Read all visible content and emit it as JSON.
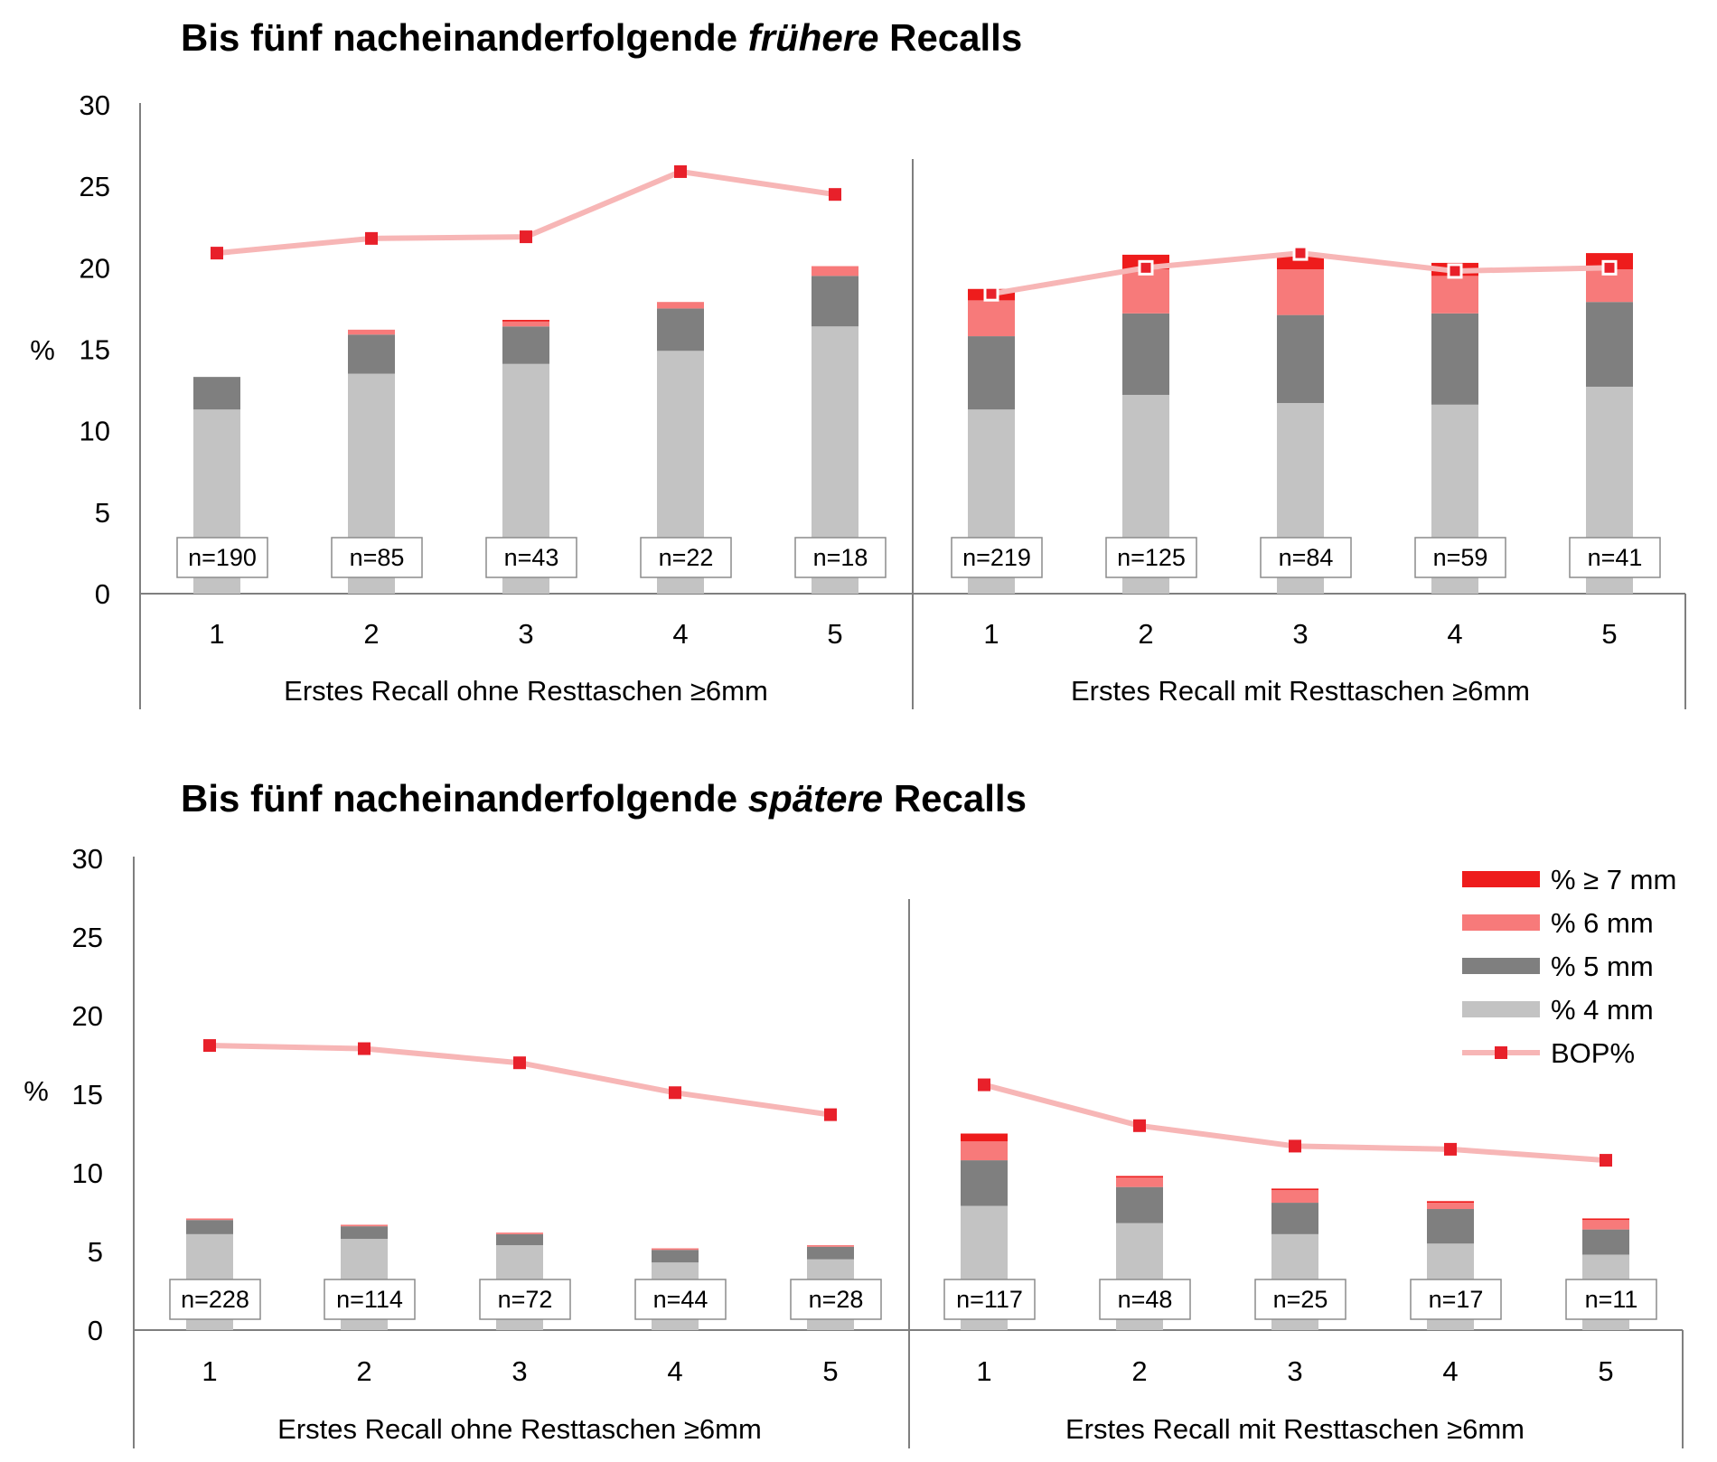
{
  "colors": {
    "pct7": "#ee1c1c",
    "pct6": "#f77a7a",
    "pct5": "#7f7f7f",
    "pct4": "#c3c3c3",
    "bop_line": "#f7b6b6",
    "bop_marker": "#e8202a"
  },
  "legend": {
    "items": [
      {
        "key": "pct7",
        "label": "% ≥ 7 mm"
      },
      {
        "key": "pct6",
        "label": "% 6 mm"
      },
      {
        "key": "pct5",
        "label": "% 5 mm"
      },
      {
        "key": "pct4",
        "label": "% 4 mm"
      },
      {
        "key": "bop",
        "label": "BOP%"
      }
    ]
  },
  "chart_data": [
    {
      "type": "bar",
      "stacked": true,
      "title_prefix": "Bis fünf nacheinanderfolgende ",
      "title_emph": "frühere",
      "title_suffix": " Recalls",
      "ylabel": "%",
      "ylim": [
        0,
        30
      ],
      "yticks": [
        0,
        5,
        10,
        15,
        20,
        25,
        30
      ],
      "legend": "none",
      "groups": [
        {
          "label": "Erstes Recall ohne Resttaschen ≥6mm",
          "categories": [
            "1",
            "2",
            "3",
            "4",
            "5"
          ],
          "n_labels": [
            "n=190",
            "n=85",
            "n=43",
            "n=22",
            "n=18"
          ],
          "series": [
            {
              "name": "% 4 mm",
              "key": "pct4",
              "values": [
                11.3,
                13.5,
                14.1,
                14.9,
                16.4
              ]
            },
            {
              "name": "% 5 mm",
              "key": "pct5",
              "values": [
                2.0,
                2.4,
                2.3,
                2.6,
                3.1
              ]
            },
            {
              "name": "% 6 mm",
              "key": "pct6",
              "values": [
                0.0,
                0.3,
                0.3,
                0.4,
                0.6
              ]
            },
            {
              "name": "% ≥ 7 mm",
              "key": "pct7",
              "values": [
                0.0,
                0.0,
                0.1,
                0.0,
                0.0
              ]
            }
          ],
          "bop": [
            20.9,
            21.8,
            21.9,
            25.9,
            24.5
          ]
        },
        {
          "label": "Erstes Recall mit Resttaschen ≥6mm",
          "categories": [
            "1",
            "2",
            "3",
            "4",
            "5"
          ],
          "n_labels": [
            "n=219",
            "n=125",
            "n=84",
            "n=59",
            "n=41"
          ],
          "series": [
            {
              "name": "% 4 mm",
              "key": "pct4",
              "values": [
                11.3,
                12.2,
                11.7,
                11.6,
                12.7
              ]
            },
            {
              "name": "% 5 mm",
              "key": "pct5",
              "values": [
                4.5,
                5.0,
                5.4,
                5.6,
                5.2
              ]
            },
            {
              "name": "% 6 mm",
              "key": "pct6",
              "values": [
                2.2,
                2.7,
                2.8,
                2.3,
                2.0
              ]
            },
            {
              "name": "% ≥ 7 mm",
              "key": "pct7",
              "values": [
                0.7,
                0.9,
                0.9,
                0.8,
                1.0
              ]
            }
          ],
          "bop": [
            18.4,
            20.0,
            20.9,
            19.8,
            20.0
          ]
        }
      ]
    },
    {
      "type": "bar",
      "stacked": true,
      "title_prefix": "Bis fünf nacheinanderfolgende ",
      "title_emph": "spätere",
      "title_suffix": " Recalls",
      "ylabel": "%",
      "ylim": [
        0,
        30
      ],
      "yticks": [
        0,
        5,
        10,
        15,
        20,
        25,
        30
      ],
      "legend": "right",
      "groups": [
        {
          "label": "Erstes Recall ohne Resttaschen ≥6mm",
          "categories": [
            "1",
            "2",
            "3",
            "4",
            "5"
          ],
          "n_labels": [
            "n=228",
            "n=114",
            "n=72",
            "n=44",
            "n=28"
          ],
          "series": [
            {
              "name": "% 4 mm",
              "key": "pct4",
              "values": [
                6.1,
                5.8,
                5.4,
                4.3,
                4.5
              ]
            },
            {
              "name": "% 5 mm",
              "key": "pct5",
              "values": [
                0.9,
                0.8,
                0.7,
                0.8,
                0.8
              ]
            },
            {
              "name": "% 6 mm",
              "key": "pct6",
              "values": [
                0.1,
                0.1,
                0.1,
                0.1,
                0.1
              ]
            },
            {
              "name": "% ≥ 7 mm",
              "key": "pct7",
              "values": [
                0.0,
                0.0,
                0.0,
                0.0,
                0.0
              ]
            }
          ],
          "bop": [
            18.1,
            17.9,
            17.0,
            15.1,
            13.7
          ]
        },
        {
          "label": "Erstes Recall mit Resttaschen ≥6mm",
          "categories": [
            "1",
            "2",
            "3",
            "4",
            "5"
          ],
          "n_labels": [
            "n=117",
            "n=48",
            "n=25",
            "n=17",
            "n=11"
          ],
          "series": [
            {
              "name": "% 4 mm",
              "key": "pct4",
              "values": [
                7.9,
                6.8,
                6.1,
                5.5,
                4.8
              ]
            },
            {
              "name": "% 5 mm",
              "key": "pct5",
              "values": [
                2.9,
                2.3,
                2.0,
                2.2,
                1.6
              ]
            },
            {
              "name": "% 6 mm",
              "key": "pct6",
              "values": [
                1.2,
                0.6,
                0.8,
                0.4,
                0.6
              ]
            },
            {
              "name": "% ≥ 7 mm",
              "key": "pct7",
              "values": [
                0.5,
                0.1,
                0.1,
                0.1,
                0.1
              ]
            }
          ],
          "bop": [
            15.6,
            13.0,
            11.7,
            11.5,
            10.8
          ]
        }
      ]
    }
  ]
}
